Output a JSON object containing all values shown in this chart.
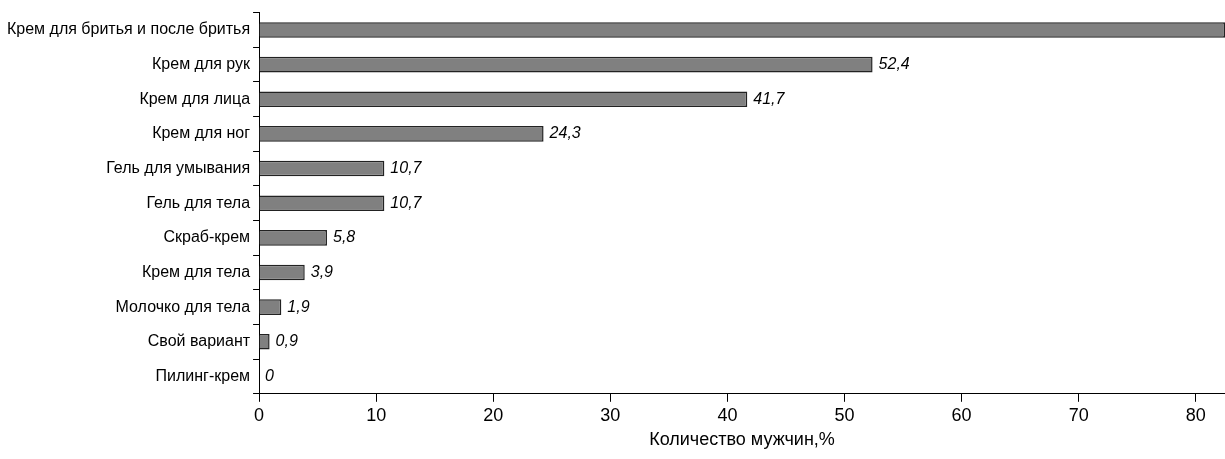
{
  "chart_data": {
    "type": "bar",
    "orientation": "horizontal",
    "xlabel": "Количество мужчин,%",
    "categories": [
      "Крем для бритья и после бритья",
      "Крем для рук",
      "Крем для лица",
      "Крем для ног",
      "Гель для умывания",
      "Гель для тела",
      "Скраб-крем",
      "Крем для тела",
      "Молочко для тела",
      "Свой вариант",
      "Пилинг-крем"
    ],
    "values": [
      82.5,
      52.4,
      41.7,
      24.3,
      10.7,
      10.7,
      5.8,
      3.9,
      1.9,
      0.9,
      0
    ],
    "value_labels": [
      null,
      "52,4",
      "41,7",
      "24,3",
      "10,7",
      "10,7",
      "5,8",
      "3,9",
      "1,9",
      "0,9",
      "0"
    ],
    "color": "#808080",
    "xlim": [
      0,
      82.5
    ],
    "xticks": [
      0,
      10,
      20,
      30,
      40,
      50,
      60,
      70,
      80
    ],
    "grid": false,
    "legend": false
  }
}
